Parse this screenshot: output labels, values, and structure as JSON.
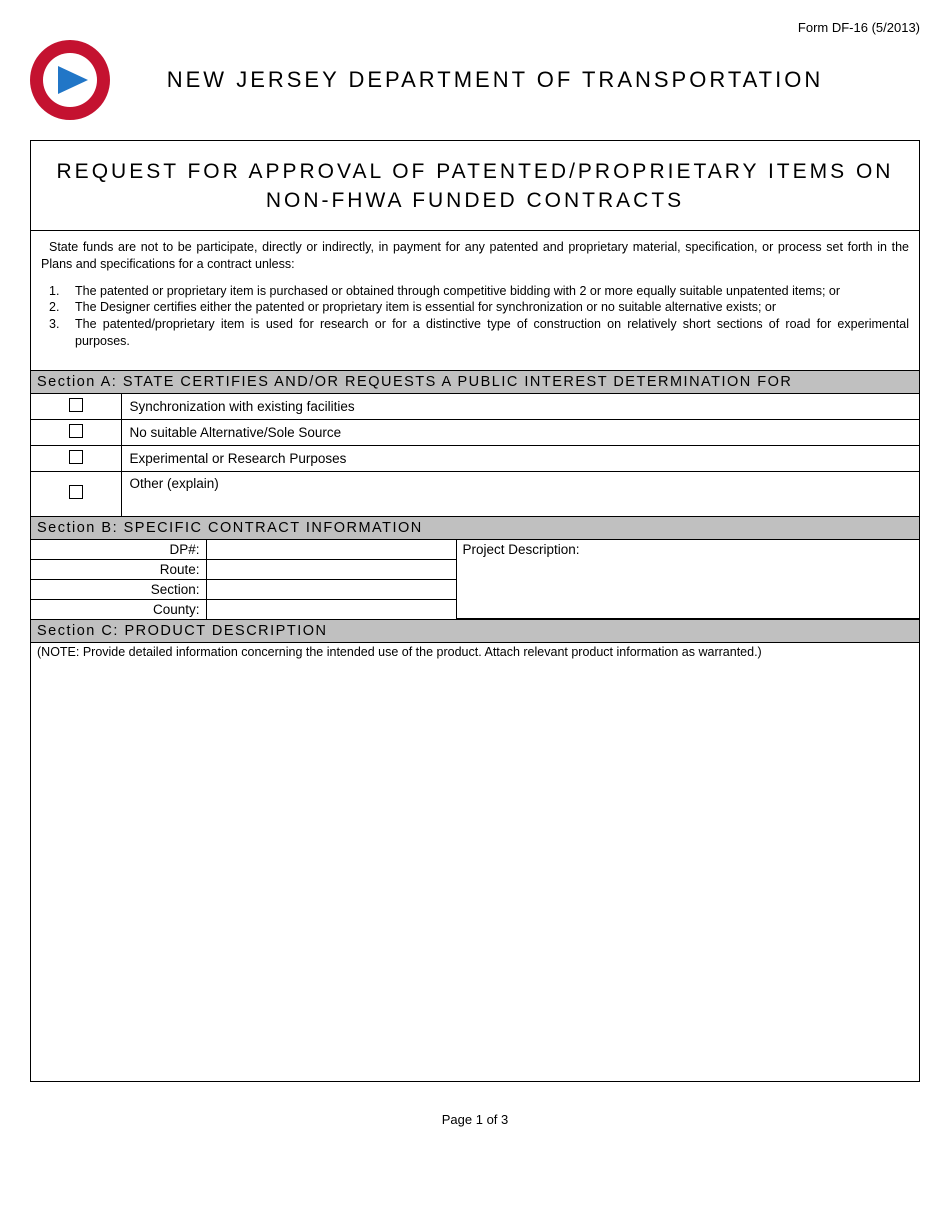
{
  "meta": {
    "form_id": "Form DF-16 (5/2013)",
    "page_label": "Page 1 of 3"
  },
  "header": {
    "dept_title": "NEW JERSEY DEPARTMENT OF TRANSPORTATION",
    "logo": {
      "outer_color": "#c41230",
      "inner_color": "#ffffff",
      "arrow_color": "#2176c7"
    }
  },
  "main_title": {
    "line1": "REQUEST FOR APPROVAL OF PATENTED/PROPRIETARY ITEMS ON",
    "line2": "NON-FHWA FUNDED CONTRACTS"
  },
  "intro": {
    "lead": "State funds are not to be participate, directly or indirectly, in payment for any patented and proprietary material, specification, or process set forth in the Plans and specifications for a contract unless:",
    "items": [
      {
        "num": "1.",
        "text": "The patented or proprietary item is purchased or obtained through competitive bidding with 2 or more equally suitable unpatented items; or"
      },
      {
        "num": "2.",
        "text": "The Designer certifies either the patented or proprietary item is essential for synchronization or no suitable alternative exists; or"
      },
      {
        "num": "3.",
        "text": "The patented/proprietary item is used for research or for a distinctive type of construction on relatively short sections of road for experimental purposes."
      }
    ]
  },
  "sectionA": {
    "label": "Section A:",
    "title": "STATE CERTIFIES AND/OR REQUESTS A PUBLIC INTEREST DETERMINATION FOR",
    "options": [
      {
        "label": "Synchronization with existing facilities",
        "checked": false
      },
      {
        "label": "No suitable Alternative/Sole Source",
        "checked": false
      },
      {
        "label": "Experimental or Research Purposes",
        "checked": false
      },
      {
        "label": "Other (explain)",
        "checked": false,
        "tall": true
      }
    ]
  },
  "sectionB": {
    "label": "Section B:",
    "title": "SPECIFIC CONTRACT INFORMATION",
    "fields": {
      "dp_label": "DP#:",
      "dp_value": "",
      "route_label": "Route:",
      "route_value": "",
      "section_label": "Section:",
      "section_value": "",
      "county_label": "County:",
      "county_value": "",
      "projdesc_label": "Project Description:",
      "projdesc_value": ""
    }
  },
  "sectionC": {
    "label": "Section C:",
    "title": "PRODUCT DESCRIPTION",
    "note": "(NOTE: Provide detailed information concerning the intended use of the product.  Attach relevant product information as warranted.)"
  },
  "colors": {
    "section_bg": "#c0c0c0",
    "border": "#000000",
    "text": "#000000"
  }
}
